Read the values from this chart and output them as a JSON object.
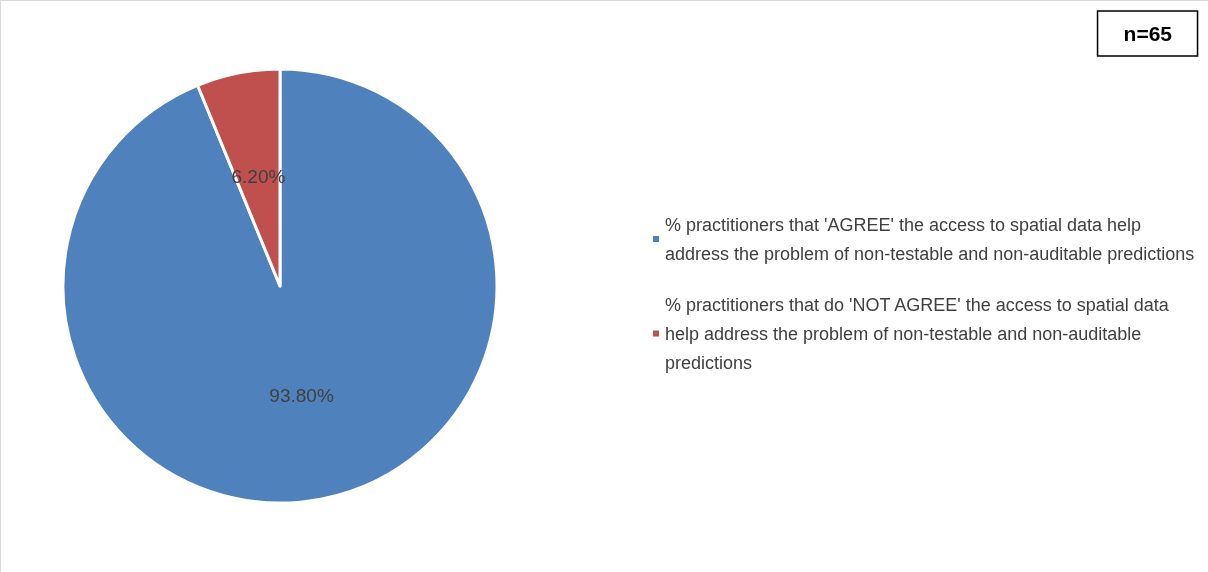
{
  "chart_data": {
    "type": "pie",
    "categories": [
      "% practitioners that 'AGREE' the access to spatial data help address the problem of non-testable and non-auditable predictions",
      "% practitioners that do 'NOT AGREE' the access to spatial data help address the problem of non-testable and non-auditable predictions"
    ],
    "values": [
      93.8,
      6.2
    ],
    "colors": [
      "#4f81bd",
      "#c0504d"
    ],
    "value_labels": [
      "93.80%",
      "6.20%"
    ],
    "annotations": [
      "n=65"
    ],
    "legend": "right"
  }
}
